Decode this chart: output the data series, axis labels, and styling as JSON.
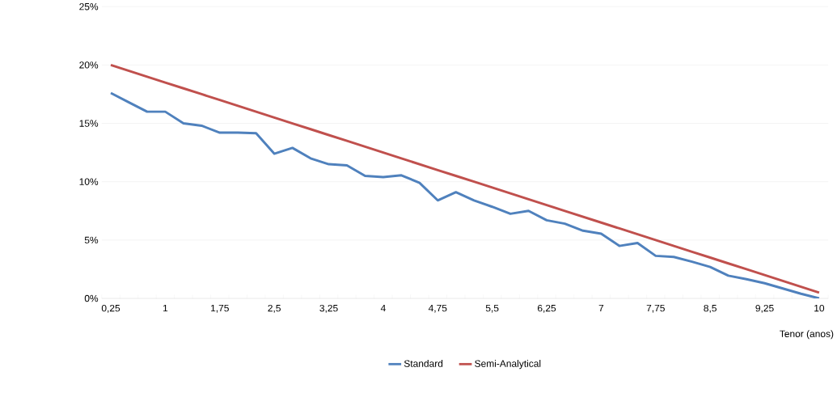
{
  "chart_data": {
    "type": "line",
    "xlabel": "Tenor (anos)",
    "categories": [
      "0,25",
      null,
      null,
      "1",
      null,
      null,
      "1,75",
      null,
      null,
      "2,5",
      null,
      null,
      "3,25",
      null,
      null,
      "4",
      null,
      null,
      "4,75",
      null,
      null,
      "5,5",
      null,
      null,
      "6,25",
      null,
      null,
      "7",
      null,
      null,
      "7,75",
      null,
      null,
      "8,5",
      null,
      null,
      "9,25",
      null,
      null,
      "10"
    ],
    "series": [
      {
        "name": "Standard",
        "color": "#4f81bd",
        "values": [
          17.6,
          16.8,
          16.0,
          16.0,
          15.0,
          14.8,
          14.2,
          14.2,
          14.15,
          12.4,
          12.9,
          12.0,
          11.5,
          11.4,
          10.5,
          10.4,
          10.55,
          9.9,
          8.4,
          9.1,
          8.4,
          7.85,
          7.25,
          7.5,
          6.7,
          6.4,
          5.8,
          5.55,
          4.5,
          4.75,
          3.65,
          3.55,
          3.15,
          2.7,
          1.95,
          1.65,
          1.3,
          0.85,
          0.4,
          0.0
        ]
      },
      {
        "name": "Semi-Analytical",
        "color": "#c0504d",
        "values": [
          20.0,
          19.5,
          19.0,
          18.5,
          18.0,
          17.5,
          17.0,
          16.5,
          16.0,
          15.5,
          15.0,
          14.5,
          14.0,
          13.5,
          13.0,
          12.5,
          12.0,
          11.5,
          11.0,
          10.5,
          10.0,
          9.5,
          9.0,
          8.5,
          8.0,
          7.5,
          7.0,
          6.5,
          6.0,
          5.5,
          5.0,
          4.5,
          4.0,
          3.5,
          3.0,
          2.5,
          2.0,
          1.5,
          1.0,
          0.5
        ]
      }
    ],
    "ylim": [
      0,
      25
    ],
    "yticks": [
      {
        "value": 0,
        "label": "0%"
      },
      {
        "value": 5,
        "label": "5%"
      },
      {
        "value": 10,
        "label": "10%"
      },
      {
        "value": 15,
        "label": "15%"
      },
      {
        "value": 20,
        "label": "20%"
      },
      {
        "value": 25,
        "label": "25%"
      }
    ],
    "grid": "y",
    "legend": "bottom",
    "marker": "none",
    "line_style": "solid"
  }
}
